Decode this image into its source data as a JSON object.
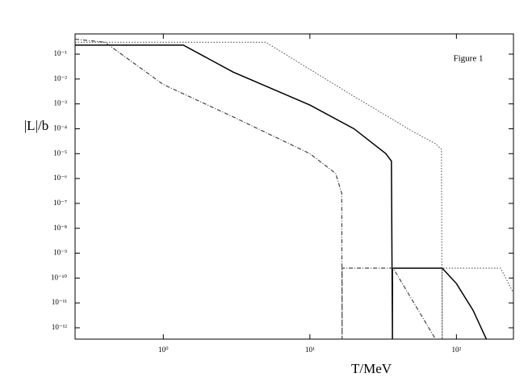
{
  "chart_data": {
    "type": "line",
    "annotation": "Figure 1",
    "x_label": "T/MeV",
    "y_label": "|L|/b",
    "log_x": true,
    "log_y": true,
    "xlim": [
      0.25,
      245
    ],
    "ylim": [
      3.5e-13,
      0.65
    ],
    "xticks": [
      {
        "value": 1,
        "label": "10⁰"
      },
      {
        "value": 10,
        "label": "10¹"
      },
      {
        "value": 100,
        "label": "10²"
      }
    ],
    "yticks": [
      {
        "value": 0.1,
        "label": "10⁻¹"
      },
      {
        "value": 0.01,
        "label": "10⁻²"
      },
      {
        "value": 0.001,
        "label": "10⁻³"
      },
      {
        "value": 0.0001,
        "label": "10⁻⁴"
      },
      {
        "value": 1e-05,
        "label": "10⁻⁵"
      },
      {
        "value": 1e-06,
        "label": "10⁻⁶"
      },
      {
        "value": 1e-07,
        "label": "10⁻⁷"
      },
      {
        "value": 1e-08,
        "label": "10⁻⁸"
      },
      {
        "value": 1e-09,
        "label": "10⁻⁹"
      },
      {
        "value": 1e-10,
        "label": "10⁻¹⁰"
      },
      {
        "value": 1e-11,
        "label": "10⁻¹¹"
      },
      {
        "value": 1e-12,
        "label": "10⁻¹²"
      }
    ],
    "series": [
      {
        "color": "#000000",
        "dash": "solid",
        "x": [
          0.25,
          1.37,
          3,
          10,
          20,
          33,
          36,
          36.6,
          36.6,
          80,
          100,
          130,
          160
        ],
        "values": [
          0.23,
          0.23,
          0.019,
          0.0009,
          0.0001,
          1e-05,
          5e-06,
          3.5e-13,
          2.5e-10,
          2.5e-10,
          6e-11,
          5e-12,
          3.5e-13
        ]
      },
      {
        "color": "#555555",
        "dash": "dotted",
        "x": [
          0.25,
          5,
          20,
          50,
          72,
          79,
          80,
          80,
          200,
          245
        ],
        "values": [
          0.3,
          0.3,
          0.002,
          8e-05,
          2.5e-05,
          1.5e-05,
          3.5e-13,
          2.5e-10,
          2.5e-10,
          2.5e-11
        ]
      },
      {
        "color": "#333333",
        "dash": "dashdot",
        "x": [
          0.25,
          0.4,
          1,
          3,
          10,
          15,
          16.5,
          16.6,
          16.6,
          37,
          55,
          72
        ],
        "values": [
          0.4,
          0.3,
          0.006,
          0.0003,
          1e-05,
          1.6e-06,
          2.5e-07,
          3.5e-13,
          2.5e-10,
          2.5e-10,
          5e-12,
          3.5e-13
        ]
      }
    ]
  }
}
